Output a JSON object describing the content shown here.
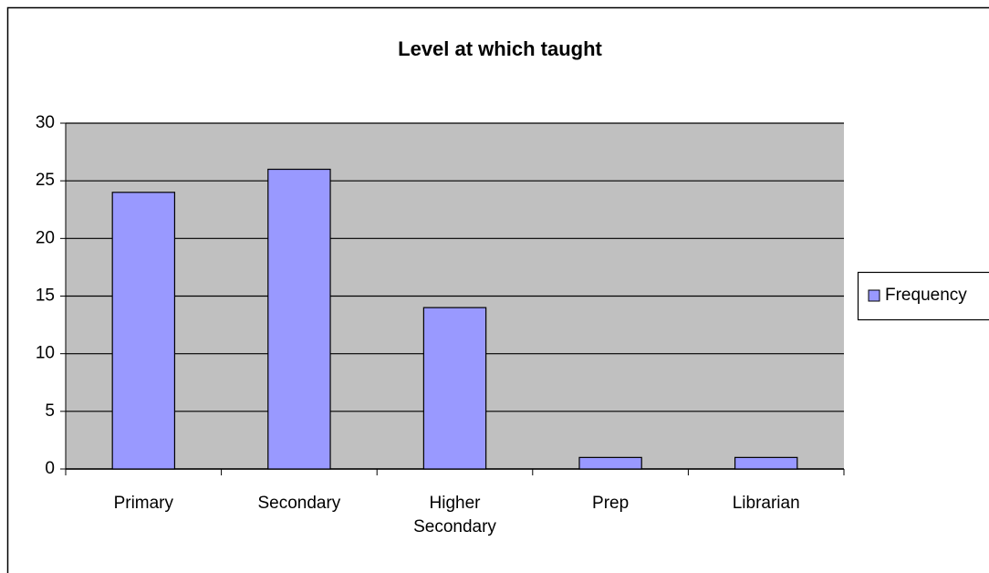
{
  "chart_data": {
    "type": "bar",
    "title": "Level at which taught",
    "categories": [
      "Primary",
      "Secondary",
      "Higher Secondary",
      "Prep",
      "Librarian"
    ],
    "series": [
      {
        "name": "Frequency",
        "color": "#9999ff",
        "values": [
          24,
          26,
          14,
          1,
          1
        ]
      }
    ],
    "ylim": [
      0,
      30
    ],
    "yticks": [
      0,
      5,
      10,
      15,
      20,
      25,
      30
    ],
    "grid": true,
    "legend": "right"
  }
}
